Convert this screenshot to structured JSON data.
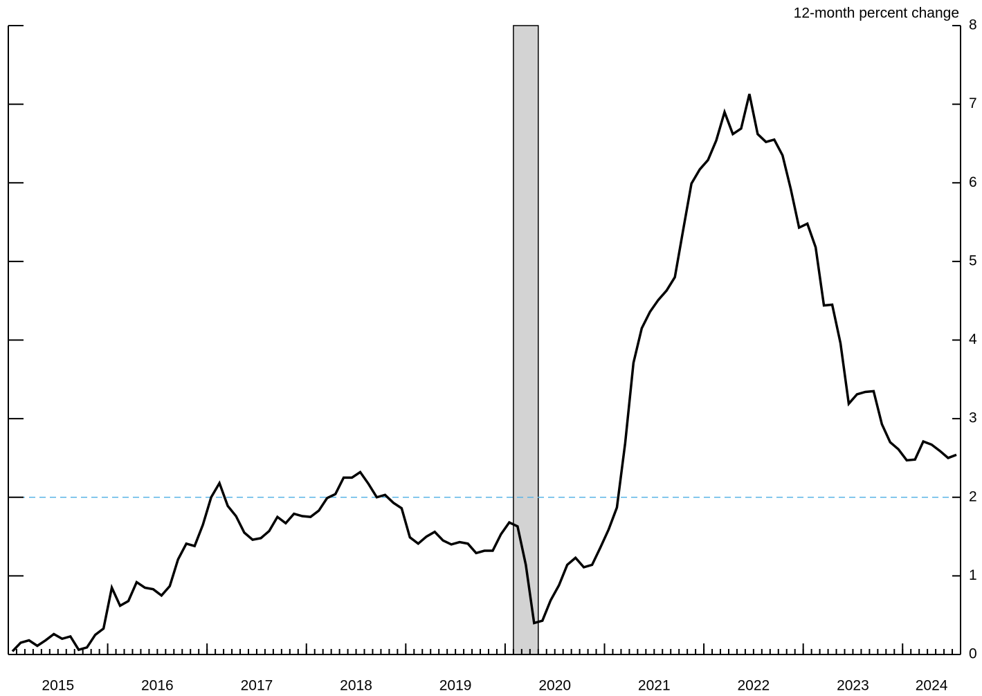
{
  "chart_data": {
    "type": "line",
    "y_axis_label": "12-month percent change",
    "x": [
      "2015-01",
      "2015-02",
      "2015-03",
      "2015-04",
      "2015-05",
      "2015-06",
      "2015-07",
      "2015-08",
      "2015-09",
      "2015-10",
      "2015-11",
      "2015-12",
      "2016-01",
      "2016-02",
      "2016-03",
      "2016-04",
      "2016-05",
      "2016-06",
      "2016-07",
      "2016-08",
      "2016-09",
      "2016-10",
      "2016-11",
      "2016-12",
      "2017-01",
      "2017-02",
      "2017-03",
      "2017-04",
      "2017-05",
      "2017-06",
      "2017-07",
      "2017-08",
      "2017-09",
      "2017-10",
      "2017-11",
      "2017-12",
      "2018-01",
      "2018-02",
      "2018-03",
      "2018-04",
      "2018-05",
      "2018-06",
      "2018-07",
      "2018-08",
      "2018-09",
      "2018-10",
      "2018-11",
      "2018-12",
      "2019-01",
      "2019-02",
      "2019-03",
      "2019-04",
      "2019-05",
      "2019-06",
      "2019-07",
      "2019-08",
      "2019-09",
      "2019-10",
      "2019-11",
      "2019-12",
      "2020-01",
      "2020-02",
      "2020-03",
      "2020-04",
      "2020-05",
      "2020-06",
      "2020-07",
      "2020-08",
      "2020-09",
      "2020-10",
      "2020-11",
      "2020-12",
      "2021-01",
      "2021-02",
      "2021-03",
      "2021-04",
      "2021-05",
      "2021-06",
      "2021-07",
      "2021-08",
      "2021-09",
      "2021-10",
      "2021-11",
      "2021-12",
      "2022-01",
      "2022-02",
      "2022-03",
      "2022-04",
      "2022-05",
      "2022-06",
      "2022-07",
      "2022-08",
      "2022-09",
      "2022-10",
      "2022-11",
      "2022-12",
      "2023-01",
      "2023-02",
      "2023-03",
      "2023-04",
      "2023-05",
      "2023-06",
      "2023-07",
      "2023-08",
      "2023-09",
      "2023-10",
      "2023-11",
      "2023-12",
      "2024-01",
      "2024-02",
      "2024-03",
      "2024-04",
      "2024-05",
      "2024-06",
      "2024-07"
    ],
    "series": [
      {
        "color": "#000000",
        "values": [
          0.04,
          0.15,
          0.18,
          0.11,
          0.18,
          0.26,
          0.2,
          0.23,
          0.06,
          0.09,
          0.25,
          0.33,
          0.85,
          0.62,
          0.68,
          0.92,
          0.85,
          0.83,
          0.75,
          0.87,
          1.21,
          1.41,
          1.38,
          1.65,
          2.0,
          2.18,
          1.89,
          1.76,
          1.55,
          1.46,
          1.48,
          1.57,
          1.75,
          1.67,
          1.79,
          1.76,
          1.75,
          1.83,
          1.99,
          2.04,
          2.25,
          2.25,
          2.32,
          2.17,
          2.0,
          2.03,
          1.93,
          1.86,
          1.49,
          1.41,
          1.5,
          1.56,
          1.45,
          1.4,
          1.43,
          1.41,
          1.29,
          1.32,
          1.32,
          1.53,
          1.68,
          1.63,
          1.14,
          0.4,
          0.43,
          0.69,
          0.88,
          1.14,
          1.23,
          1.11,
          1.14,
          1.36,
          1.59,
          1.87,
          2.69,
          3.71,
          4.15,
          4.36,
          4.51,
          4.63,
          4.8,
          5.4,
          5.99,
          6.17,
          6.29,
          6.54,
          6.9,
          6.62,
          6.69,
          7.13,
          6.62,
          6.52,
          6.55,
          6.35,
          5.92,
          5.43,
          5.48,
          5.18,
          4.44,
          4.45,
          3.96,
          3.19,
          3.31,
          3.34,
          3.35,
          2.93,
          2.7,
          2.61,
          2.47,
          2.48,
          2.71,
          2.67,
          2.59,
          2.5,
          2.54
        ]
      }
    ],
    "xlim": [
      "2015-01",
      "2024-07"
    ],
    "xticks": [
      {
        "value": "2015-01",
        "label": "2015"
      },
      {
        "value": "2016-01",
        "label": "2016"
      },
      {
        "value": "2017-01",
        "label": "2017"
      },
      {
        "value": "2018-01",
        "label": "2018"
      },
      {
        "value": "2019-01",
        "label": "2019"
      },
      {
        "value": "2020-01",
        "label": "2020"
      },
      {
        "value": "2021-01",
        "label": "2021"
      },
      {
        "value": "2022-01",
        "label": "2022"
      },
      {
        "value": "2023-01",
        "label": "2023"
      },
      {
        "value": "2024-01",
        "label": "2024"
      }
    ],
    "ylim": [
      0,
      8
    ],
    "yticks": [
      0,
      1,
      2,
      3,
      4,
      5,
      6,
      7,
      8
    ],
    "shading": [
      {
        "start": "2020-02",
        "end": "2020-04",
        "color": "#d3d3d3"
      }
    ],
    "reference_line": {
      "value": 2,
      "color": "#5ab4e6"
    }
  }
}
